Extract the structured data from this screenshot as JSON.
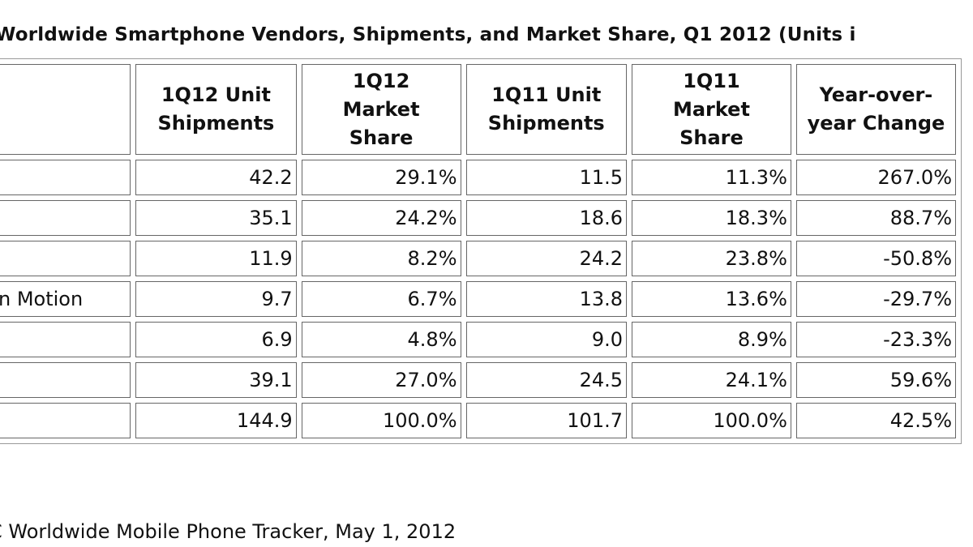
{
  "title": "Worldwide Smartphone Vendors, Shipments, and Market Share, Q1 2012 (Units i",
  "table": {
    "header": [
      [
        "1Q12 Unit",
        "Shipments"
      ],
      [
        "1Q12",
        "Market",
        "Share"
      ],
      [
        "1Q11 Unit",
        "Shipments"
      ],
      [
        "1Q11",
        "Market",
        "Share"
      ],
      [
        "Year-over-",
        "year Change"
      ]
    ],
    "rows": [
      {
        "cells": [
          "42.2",
          "29.1%",
          "11.5",
          "11.3%",
          "267.0%"
        ]
      },
      {
        "cells": [
          "35.1",
          "24.2%",
          "18.6",
          "18.3%",
          "88.7%"
        ]
      },
      {
        "cells": [
          "11.9",
          "8.2%",
          "24.2",
          "23.8%",
          "-50.8%"
        ]
      },
      {
        "vendor": "n Motion",
        "cells": [
          "9.7",
          "6.7%",
          "13.8",
          "13.6%",
          "-29.7%"
        ]
      },
      {
        "cells": [
          "6.9",
          "4.8%",
          "9.0",
          "8.9%",
          "-23.3%"
        ]
      },
      {
        "cells": [
          "39.1",
          "27.0%",
          "24.5",
          "24.1%",
          "59.6%"
        ]
      },
      {
        "cells": [
          "144.9",
          "100.0%",
          "101.7",
          "100.0%",
          "42.5%"
        ]
      }
    ]
  },
  "source": "C Worldwide Mobile Phone Tracker, May 1, 2012"
}
